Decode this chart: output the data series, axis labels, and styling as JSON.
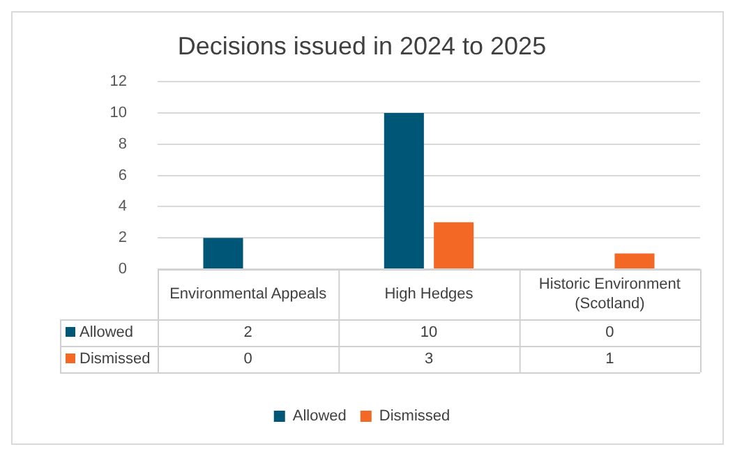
{
  "chart_data": {
    "type": "bar",
    "title": "Decisions issued in 2024 to 2025",
    "categories": [
      "Environmental Appeals",
      "High Hedges",
      "Historic Environment (Scotland)"
    ],
    "series": [
      {
        "name": "Allowed",
        "color": "#005677",
        "values": [
          2,
          10,
          0
        ]
      },
      {
        "name": "Dismissed",
        "color": "#f46826",
        "values": [
          0,
          3,
          1
        ]
      }
    ],
    "ylim": [
      0,
      12
    ],
    "yticks": [
      0,
      2,
      4,
      6,
      8,
      10,
      12
    ],
    "grid": "y",
    "legend": "bottom",
    "data_labels": true
  }
}
